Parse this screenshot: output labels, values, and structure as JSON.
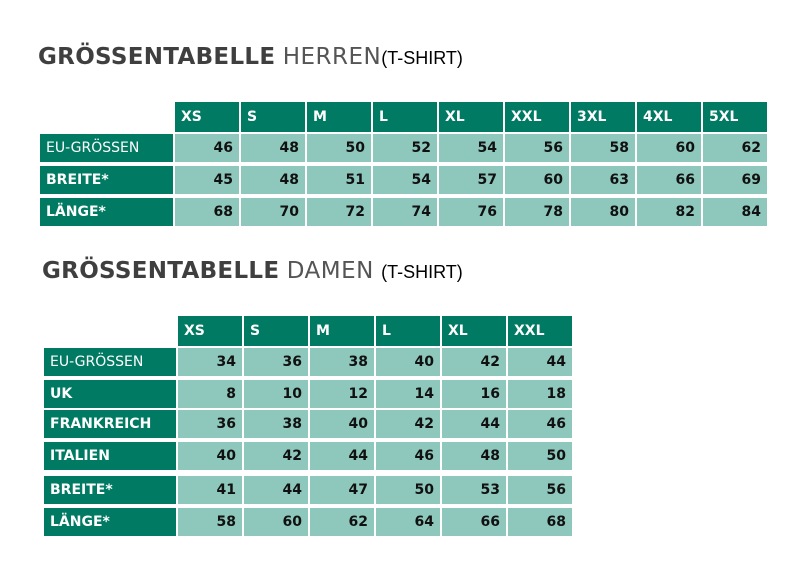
{
  "tables": [
    {
      "title": {
        "bold": "GRÖSSENTABELLE",
        "light": "HERREN",
        "suffix": "(T-SHIRT)"
      },
      "header": [
        "XS",
        "S",
        "M",
        "L",
        "XL",
        "XXL",
        "3XL",
        "4XL",
        "5XL"
      ],
      "rows": [
        {
          "label": "EU-GRÖSSEN",
          "values": [
            46,
            48,
            50,
            52,
            54,
            56,
            58,
            60,
            62
          ]
        },
        {
          "label": "BREITE*",
          "values": [
            45,
            48,
            51,
            54,
            57,
            60,
            63,
            66,
            69
          ]
        },
        {
          "label": "LÄNGE*",
          "values": [
            68,
            70,
            72,
            74,
            76,
            78,
            80,
            82,
            84
          ]
        }
      ]
    },
    {
      "title": {
        "bold": "GRÖSSENTABELLE",
        "light": "DAMEN",
        "suffix": "(T-SHIRT)"
      },
      "header": [
        "XS",
        "S",
        "M",
        "L",
        "XL",
        "XXL"
      ],
      "rows": [
        {
          "label": "EU-GRÖSSEN",
          "values": [
            34,
            36,
            38,
            40,
            42,
            44
          ]
        },
        {
          "label": "UK",
          "values": [
            8,
            10,
            12,
            14,
            16,
            18
          ]
        },
        {
          "label": "FRANKREICH",
          "values": [
            36,
            38,
            40,
            42,
            44,
            46
          ]
        },
        {
          "label": "ITALIEN",
          "values": [
            40,
            42,
            44,
            46,
            48,
            50
          ]
        },
        {
          "label": "BREITE*",
          "values": [
            41,
            44,
            47,
            50,
            53,
            56
          ]
        },
        {
          "label": "LÄNGE*",
          "values": [
            58,
            60,
            62,
            64,
            66,
            68
          ]
        }
      ]
    }
  ]
}
